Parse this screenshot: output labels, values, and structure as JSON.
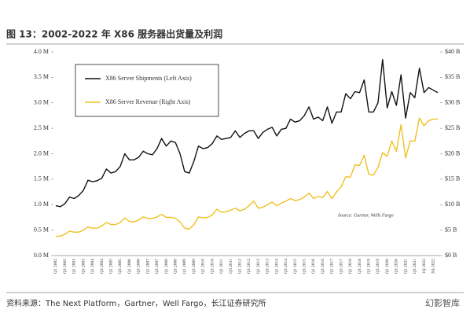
{
  "chart_data": {
    "type": "line",
    "title": "图 13：2002-2022 年 X86 服务器出货量及利润",
    "source": "资料来源：The Next Platform，Gartner，Well Fargo，长江证券研究所",
    "watermark": "幻影智库",
    "annotation": "Source: Gartner, Wells Fargo",
    "categories": [
      "Q1 2002",
      null,
      "Q3 2002",
      null,
      "Q1 2003",
      null,
      "Q3 2003",
      null,
      "Q1 2004",
      null,
      "Q3 2004",
      null,
      "Q1 2005",
      null,
      "Q3 2005",
      null,
      "Q1 2006",
      null,
      "Q3 2006",
      null,
      "Q1 2007",
      null,
      "Q3 2007",
      null,
      "Q1 2008",
      null,
      "Q3 2008",
      null,
      "Q1 2009",
      null,
      "Q3 2009",
      null,
      "Q1 2010",
      null,
      "Q3 2010",
      null,
      "Q1 2011",
      null,
      "Q3 2011",
      null,
      "Q1 2012",
      null,
      "Q3 2012",
      null,
      "Q1 2013",
      null,
      "Q3 2013",
      null,
      "Q1 2014",
      null,
      "Q3 2014",
      null,
      "Q1 2015",
      null,
      "Q3 2015",
      null,
      "Q1 2016",
      null,
      "Q3 2016",
      null,
      "Q1 2017",
      null,
      "Q3 2017",
      null,
      "Q1 2018",
      null,
      "Q3 2018",
      null,
      "Q1 2019",
      null,
      "Q3 2019",
      null,
      "Q1 2020",
      null,
      "Q3 2020",
      null,
      "Q1 2021",
      null,
      "Q3 2021",
      null,
      "1Q 2022",
      null,
      "3Q 2022",
      null
    ],
    "series": [
      {
        "name": "X86 Server Shipments (Left Axis)",
        "color": "#111111",
        "axis": "y",
        "values": [
          0.98,
          0.96,
          1.02,
          1.15,
          1.12,
          1.18,
          1.28,
          1.48,
          1.45,
          1.47,
          1.52,
          1.7,
          1.62,
          1.65,
          1.75,
          2.0,
          1.88,
          1.88,
          1.93,
          2.05,
          2.0,
          1.98,
          2.1,
          2.3,
          2.15,
          2.25,
          2.22,
          2.0,
          1.65,
          1.62,
          1.85,
          2.15,
          2.1,
          2.12,
          2.2,
          2.35,
          2.28,
          2.3,
          2.32,
          2.45,
          2.32,
          2.4,
          2.45,
          2.45,
          2.3,
          2.42,
          2.48,
          2.52,
          2.35,
          2.48,
          2.5,
          2.68,
          2.62,
          2.65,
          2.75,
          2.92,
          2.68,
          2.72,
          2.65,
          2.92,
          2.6,
          2.82,
          2.82,
          3.18,
          3.08,
          3.22,
          3.2,
          3.45,
          2.82,
          2.82,
          3.0,
          3.85,
          2.9,
          3.22,
          2.95,
          3.55,
          2.7,
          3.2,
          3.1,
          3.68,
          3.2,
          3.3,
          3.25,
          3.2
        ]
      },
      {
        "name": "X86 Server Revenue (Right Axis)",
        "color": "#f0c020",
        "axis": "y2",
        "values": [
          3.8,
          3.8,
          4.2,
          4.8,
          4.6,
          4.6,
          5.0,
          5.6,
          5.4,
          5.4,
          5.8,
          6.5,
          6.1,
          6.1,
          6.5,
          7.4,
          6.7,
          6.6,
          7.0,
          7.6,
          7.3,
          7.3,
          7.6,
          8.1,
          7.5,
          7.5,
          7.3,
          6.6,
          5.4,
          5.2,
          6.1,
          7.6,
          7.4,
          7.5,
          8.0,
          9.1,
          8.5,
          8.6,
          8.9,
          9.3,
          8.8,
          9.1,
          9.8,
          10.7,
          9.3,
          9.5,
          10.0,
          10.5,
          9.8,
          10.3,
          10.7,
          11.2,
          10.8,
          11.0,
          11.5,
          12.3,
          11.2,
          11.6,
          11.4,
          12.6,
          11.2,
          12.5,
          13.5,
          15.5,
          15.4,
          17.8,
          17.7,
          19.7,
          16.0,
          15.8,
          17.3,
          20.2,
          19.5,
          22.5,
          20.5,
          25.7,
          19.2,
          22.5,
          22.5,
          27.0,
          25.5,
          26.5,
          26.8,
          26.8
        ]
      }
    ],
    "ylim": [
      0,
      4
    ],
    "yticks": [
      {
        "value": 0,
        "label": "0.0 M"
      },
      {
        "value": 0.5,
        "label": "0.5 M"
      },
      {
        "value": 1,
        "label": "1.0 M"
      },
      {
        "value": 1.5,
        "label": "1.5 M"
      },
      {
        "value": 2,
        "label": "2.0 M"
      },
      {
        "value": 2.5,
        "label": "2.5 M"
      },
      {
        "value": 3,
        "label": "3.0 M"
      },
      {
        "value": 3.5,
        "label": "3.5 M"
      },
      {
        "value": 4,
        "label": "4.0 M"
      }
    ],
    "y2lim": [
      0,
      40
    ],
    "y2ticks": [
      {
        "value": 0,
        "label": "$0 B"
      },
      {
        "value": 5,
        "label": "$5 B"
      },
      {
        "value": 10,
        "label": "$10 B"
      },
      {
        "value": 15,
        "label": "$15 B"
      },
      {
        "value": 20,
        "label": "$20 B"
      },
      {
        "value": 25,
        "label": "$25 B"
      },
      {
        "value": 30,
        "label": "$30 B"
      },
      {
        "value": 35,
        "label": "$35 B"
      },
      {
        "value": 40,
        "label": "$40 B"
      }
    ],
    "legend": "upper left"
  }
}
